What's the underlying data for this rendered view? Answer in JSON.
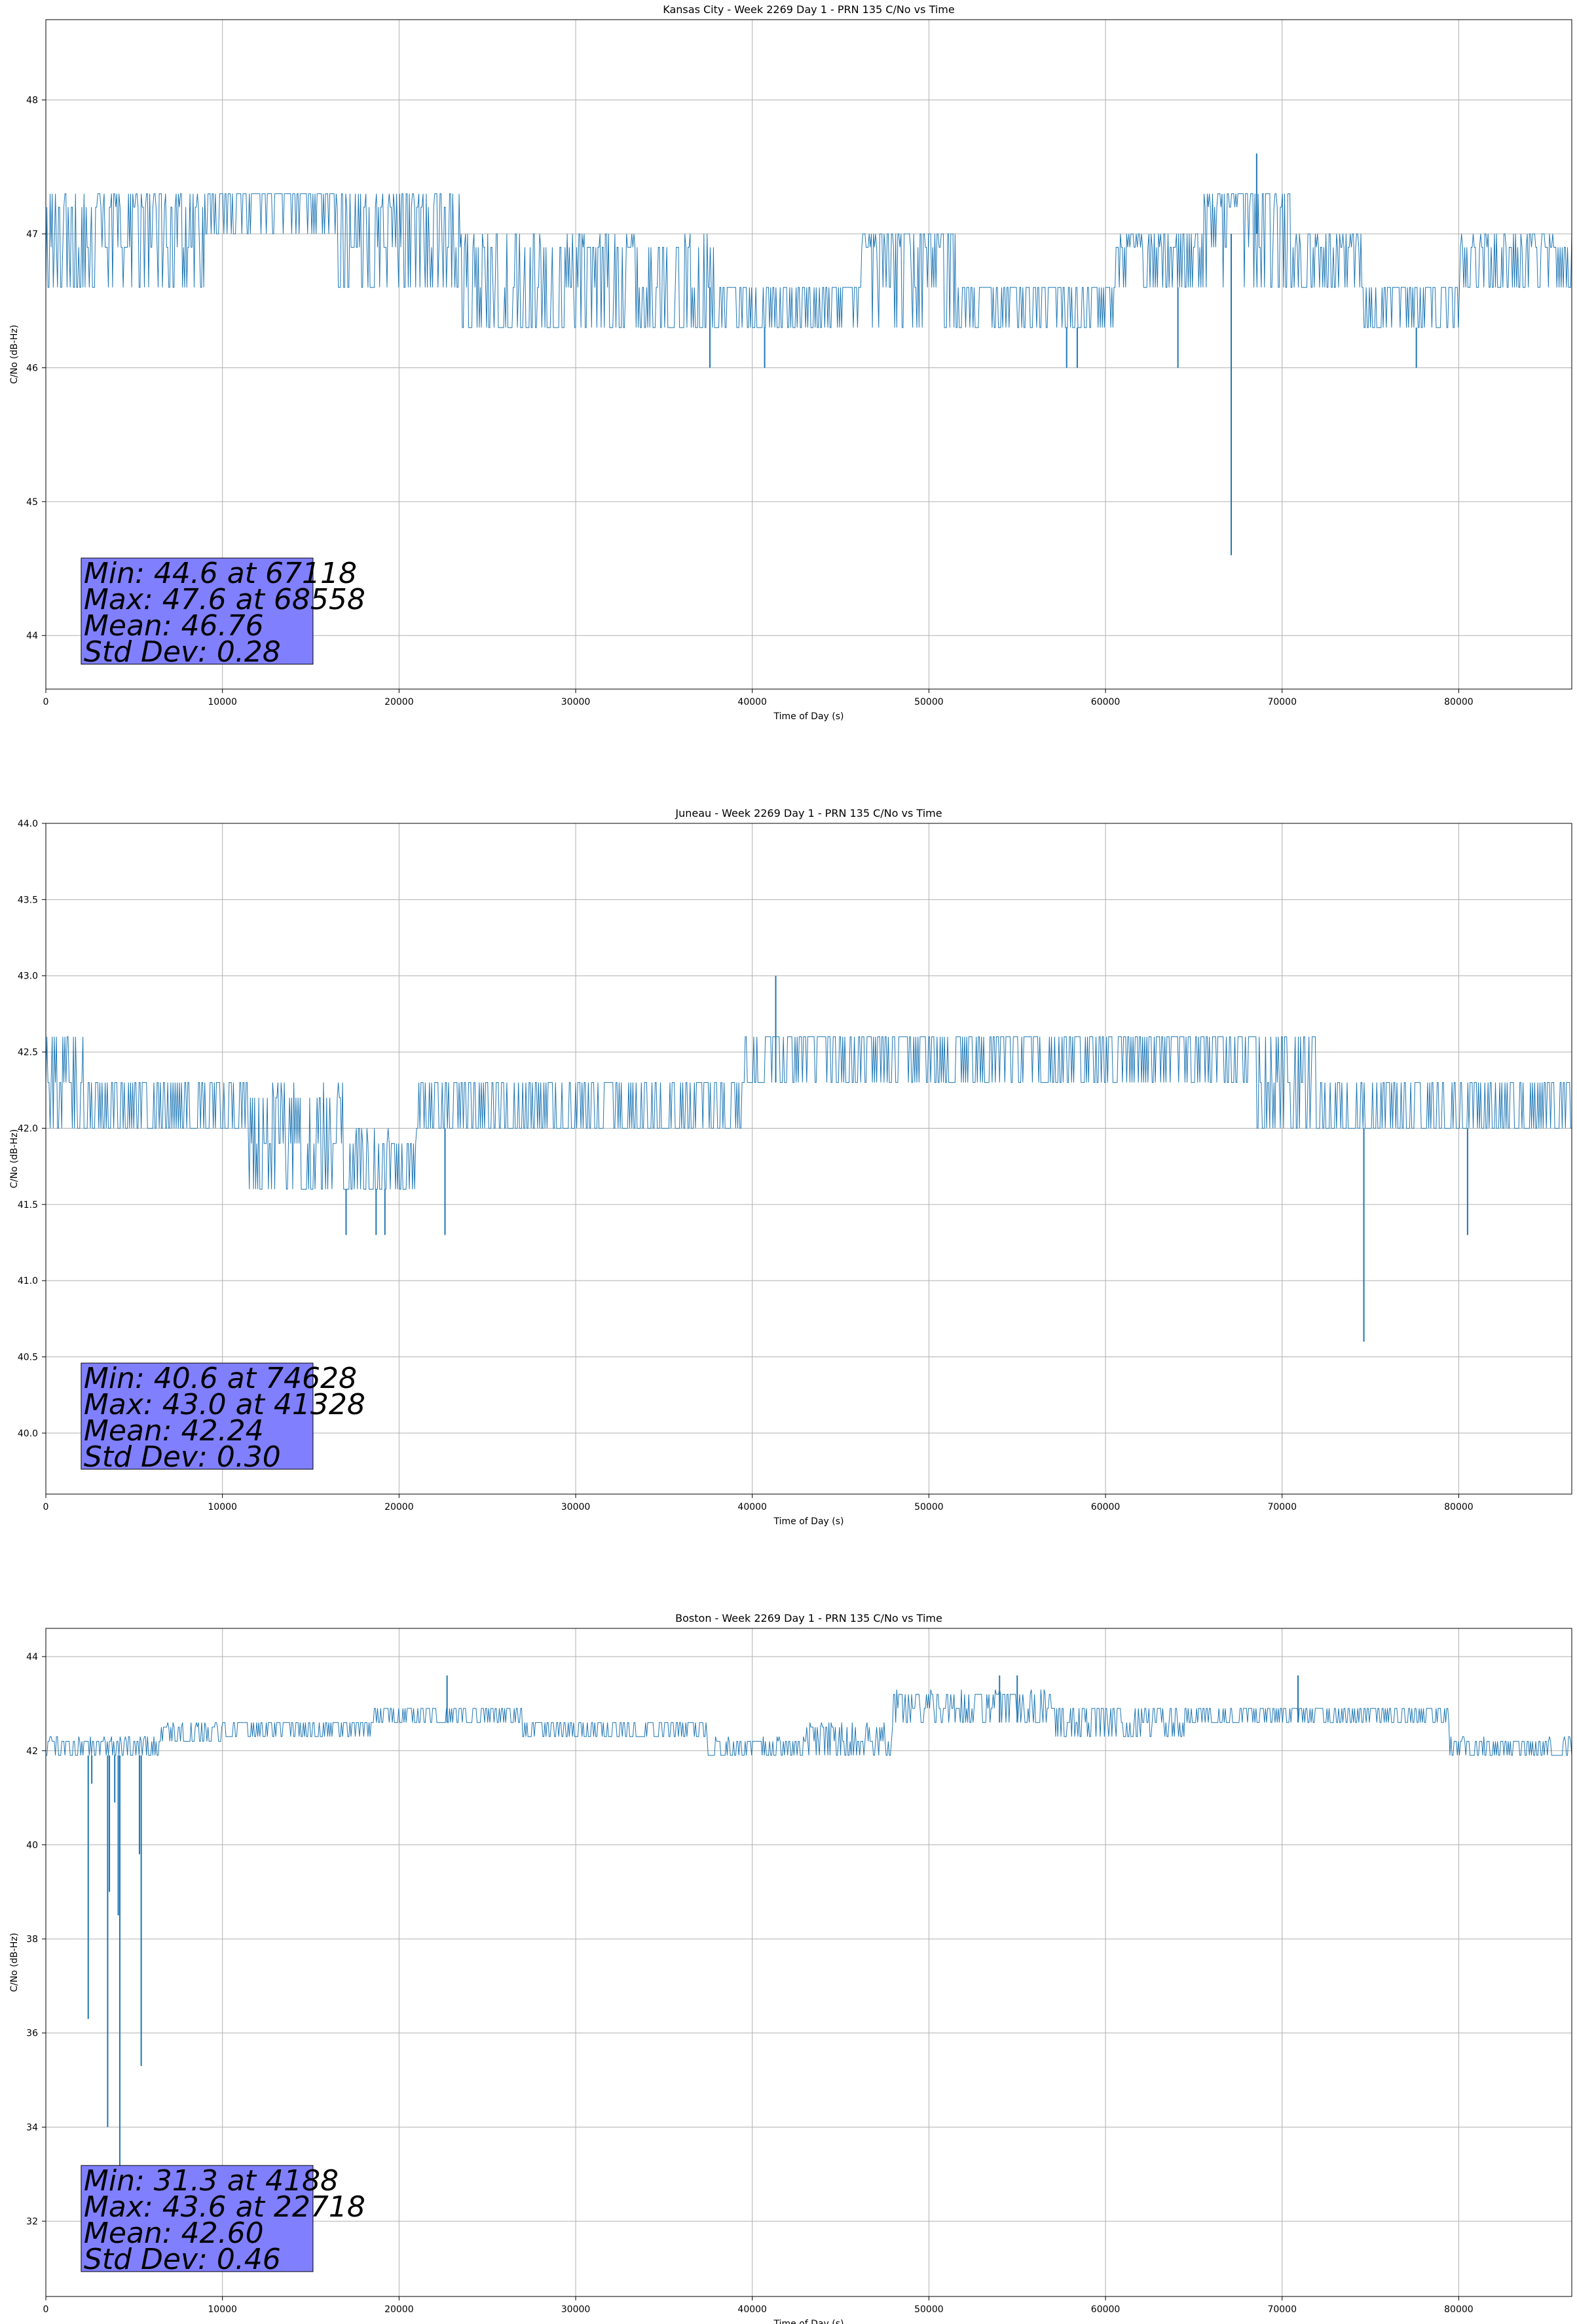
{
  "figure": {
    "background": "#ffffff",
    "line_color": "#1f77b4",
    "grid_color": "#b0b0b0",
    "stats_box_color": "#8080ff"
  },
  "chart_data": [
    {
      "type": "line",
      "title": "Kansas City - Week 2269 Day 1 - PRN 135 C/No vs Time",
      "xlabel": "Time of Day (s)",
      "ylabel": "C/No (dB-Hz)",
      "xlim": [
        0,
        86400
      ],
      "ylim": [
        43.6,
        48.6
      ],
      "xticks": [
        0,
        10000,
        20000,
        30000,
        40000,
        50000,
        60000,
        70000,
        80000
      ],
      "yticks": [
        44,
        45,
        46,
        47,
        48
      ],
      "ytick_labels": [
        "44",
        "45",
        "46",
        "47",
        "48"
      ],
      "grid": true,
      "quantization": 0.3,
      "segments": [
        {
          "x0": 0,
          "x1": 2500,
          "base": 47.0,
          "lo": 46.6,
          "hi": 47.3,
          "drop": 0.12,
          "spike": 0.22
        },
        {
          "x0": 2500,
          "x1": 9000,
          "base": 46.6,
          "lo": 46.6,
          "hi": 47.3,
          "drop": 0.0,
          "spike": 0.3
        },
        {
          "x0": 9000,
          "x1": 16500,
          "base": 47.0,
          "lo": 47.0,
          "hi": 47.3,
          "drop": 0.0,
          "spike": 0.5
        },
        {
          "x0": 16500,
          "x1": 23500,
          "base": 46.6,
          "lo": 46.6,
          "hi": 47.3,
          "drop": 0.0,
          "spike": 0.15
        },
        {
          "x0": 23500,
          "x1": 38000,
          "base": 46.6,
          "lo": 46.3,
          "hi": 47.0,
          "drop": 0.25,
          "spike": 0.12
        },
        {
          "x0": 38000,
          "x1": 46000,
          "base": 46.3,
          "lo": 46.3,
          "hi": 46.6,
          "drop": 0.02,
          "spike": 0.1
        },
        {
          "x0": 46000,
          "x1": 51500,
          "base": 46.6,
          "lo": 46.3,
          "hi": 47.0,
          "drop": 0.04,
          "spike": 0.4
        },
        {
          "x0": 51500,
          "x1": 60500,
          "base": 46.3,
          "lo": 46.3,
          "hi": 46.6,
          "drop": 0.02,
          "spike": 0.15
        },
        {
          "x0": 60500,
          "x1": 65500,
          "base": 46.6,
          "lo": 46.6,
          "hi": 47.0,
          "drop": 0.02,
          "spike": 0.4
        },
        {
          "x0": 65500,
          "x1": 70500,
          "base": 47.0,
          "lo": 46.6,
          "hi": 47.3,
          "drop": 0.06,
          "spike": 0.5
        },
        {
          "x0": 70500,
          "x1": 74500,
          "base": 46.6,
          "lo": 46.6,
          "hi": 47.0,
          "drop": 0.12,
          "spike": 0.35
        },
        {
          "x0": 74500,
          "x1": 80000,
          "base": 46.3,
          "lo": 46.3,
          "hi": 46.6,
          "drop": 0.04,
          "spike": 0.2
        },
        {
          "x0": 80000,
          "x1": 86400,
          "base": 46.6,
          "lo": 46.6,
          "hi": 47.0,
          "drop": 0.04,
          "spike": 0.2
        }
      ],
      "outliers": [
        [
          67118,
          44.6
        ],
        [
          68558,
          47.6
        ],
        [
          37600,
          46.0
        ],
        [
          40700,
          46.0
        ],
        [
          77600,
          46.0
        ],
        [
          57800,
          46.0
        ],
        [
          58400,
          46.0
        ],
        [
          64100,
          46.0
        ]
      ],
      "stats": {
        "min": "Min: 44.6 at 67118",
        "max": "Max: 47.6 at 68558",
        "mean": "Mean: 46.76",
        "std": "Std Dev: 0.28"
      }
    },
    {
      "type": "line",
      "title": "Juneau - Week 2269 Day 1 - PRN 135 C/No vs Time",
      "xlabel": "Time of Day (s)",
      "ylabel": "C/No (dB-Hz)",
      "xlim": [
        0,
        86400
      ],
      "ylim": [
        39.6,
        44.0
      ],
      "xticks": [
        0,
        10000,
        20000,
        30000,
        40000,
        50000,
        60000,
        70000,
        80000
      ],
      "yticks": [
        40.0,
        40.5,
        41.0,
        41.5,
        42.0,
        42.5,
        43.0,
        43.5,
        44.0
      ],
      "ytick_labels": [
        "40.0",
        "40.5",
        "41.0",
        "41.5",
        "42.0",
        "42.5",
        "43.0",
        "43.5",
        "44.0"
      ],
      "grid": true,
      "quantization": 0.3,
      "segments": [
        {
          "x0": 0,
          "x1": 2200,
          "base": 42.3,
          "lo": 42.0,
          "hi": 42.6,
          "drop": 0.0,
          "spike": 0.0
        },
        {
          "x0": 2200,
          "x1": 11500,
          "base": 42.0,
          "lo": 42.0,
          "hi": 42.3,
          "drop": 0.15,
          "spike": 0.15
        },
        {
          "x0": 11500,
          "x1": 17000,
          "base": 42.0,
          "lo": 41.6,
          "hi": 42.3,
          "drop": 0.1,
          "spike": 0.1
        },
        {
          "x0": 17000,
          "x1": 21000,
          "base": 41.6,
          "lo": 41.6,
          "hi": 42.0,
          "drop": 0.06,
          "spike": 0.1
        },
        {
          "x0": 21000,
          "x1": 39500,
          "base": 42.0,
          "lo": 42.0,
          "hi": 42.3,
          "drop": 0.2,
          "spike": 0.12
        },
        {
          "x0": 39500,
          "x1": 41000,
          "base": 42.3,
          "lo": 42.3,
          "hi": 42.6,
          "drop": 0.05,
          "spike": 0.1
        },
        {
          "x0": 41000,
          "x1": 68500,
          "base": 42.3,
          "lo": 42.3,
          "hi": 42.6,
          "drop": 0.02,
          "spike": 0.25
        },
        {
          "x0": 68500,
          "x1": 72000,
          "base": 42.3,
          "lo": 42.0,
          "hi": 42.6,
          "drop": 0.05,
          "spike": 0.1
        },
        {
          "x0": 72000,
          "x1": 86400,
          "base": 42.0,
          "lo": 42.0,
          "hi": 42.3,
          "drop": 0.2,
          "spike": 0.06
        }
      ],
      "outliers": [
        [
          74628,
          40.6
        ],
        [
          41328,
          43.0
        ],
        [
          17000,
          41.3
        ],
        [
          18700,
          41.3
        ],
        [
          19200,
          41.3
        ],
        [
          22600,
          41.3
        ],
        [
          80500,
          41.3
        ]
      ],
      "stats": {
        "min": "Min: 40.6 at 74628",
        "max": "Max: 43.0 at 41328",
        "mean": "Mean: 42.24",
        "std": "Std Dev: 0.30"
      }
    },
    {
      "type": "line",
      "title": "Boston - Week 2269 Day 1 - PRN 135 C/No vs Time",
      "xlabel": "Time of Day (s)",
      "ylabel": "C/No (dB-Hz)",
      "xlim": [
        0,
        86400
      ],
      "ylim": [
        30.4,
        44.6
      ],
      "xticks": [
        0,
        10000,
        20000,
        30000,
        40000,
        50000,
        60000,
        70000,
        80000
      ],
      "yticks": [
        32,
        34,
        36,
        38,
        40,
        42,
        44
      ],
      "ytick_labels": [
        "32",
        "34",
        "36",
        "38",
        "40",
        "42",
        "44"
      ],
      "grid": true,
      "quantization": 0.3,
      "segments": [
        {
          "x0": 0,
          "x1": 6500,
          "base": 41.9,
          "lo": 41.9,
          "hi": 42.3,
          "drop": 0.05,
          "spike": 0.12
        },
        {
          "x0": 6500,
          "x1": 10000,
          "base": 42.2,
          "lo": 42.2,
          "hi": 42.6,
          "drop": 0.05,
          "spike": 0.1
        },
        {
          "x0": 10000,
          "x1": 18500,
          "base": 42.3,
          "lo": 42.3,
          "hi": 42.6,
          "drop": 0.04,
          "spike": 0.08
        },
        {
          "x0": 18500,
          "x1": 27000,
          "base": 42.6,
          "lo": 42.6,
          "hi": 42.9,
          "drop": 0.04,
          "spike": 0.12
        },
        {
          "x0": 27000,
          "x1": 37500,
          "base": 42.3,
          "lo": 42.3,
          "hi": 42.6,
          "drop": 0.03,
          "spike": 0.05
        },
        {
          "x0": 37500,
          "x1": 43000,
          "base": 41.9,
          "lo": 41.9,
          "hi": 42.3,
          "drop": 0.04,
          "spike": 0.1
        },
        {
          "x0": 43000,
          "x1": 48000,
          "base": 42.2,
          "lo": 41.9,
          "hi": 42.6,
          "drop": 0.03,
          "spike": 0.1
        },
        {
          "x0": 48000,
          "x1": 57000,
          "base": 42.6,
          "lo": 42.6,
          "hi": 43.3,
          "drop": 0.04,
          "spike": 0.1
        },
        {
          "x0": 57000,
          "x1": 64500,
          "base": 42.6,
          "lo": 42.3,
          "hi": 42.9,
          "drop": 0.04,
          "spike": 0.06
        },
        {
          "x0": 64500,
          "x1": 79500,
          "base": 42.6,
          "lo": 42.6,
          "hi": 42.9,
          "drop": 0.03,
          "spike": 0.15
        },
        {
          "x0": 79500,
          "x1": 86400,
          "base": 41.9,
          "lo": 41.9,
          "hi": 42.3,
          "drop": 0.03,
          "spike": 0.1
        }
      ],
      "outliers": [
        [
          4188,
          31.3
        ],
        [
          22718,
          43.6
        ],
        [
          2400,
          36.3
        ],
        [
          3500,
          34.0
        ],
        [
          3600,
          39.0
        ],
        [
          3900,
          40.9
        ],
        [
          4100,
          38.5
        ],
        [
          5400,
          35.3
        ],
        [
          5300,
          39.8
        ],
        [
          2600,
          41.3
        ],
        [
          70900,
          43.6
        ],
        [
          54000,
          43.6
        ],
        [
          55000,
          43.6
        ]
      ],
      "stats": {
        "min": "Min: 31.3 at 4188",
        "max": "Max: 43.6 at 22718",
        "mean": "Mean: 42.60",
        "std": "Std Dev: 0.46"
      }
    }
  ]
}
